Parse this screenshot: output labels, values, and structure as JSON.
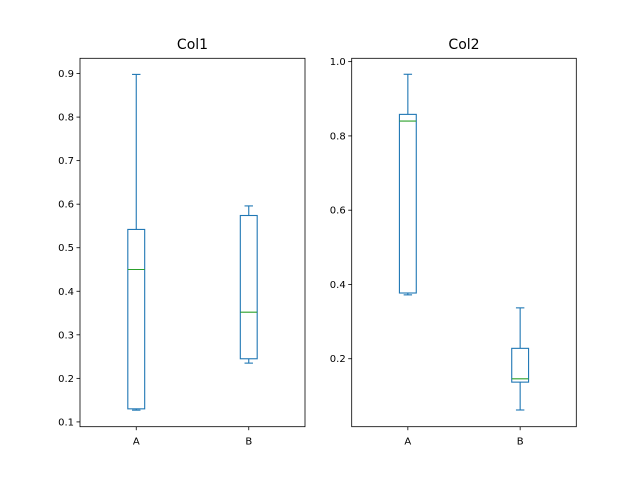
{
  "chart_data": [
    {
      "type": "boxplot",
      "title": "Col1",
      "categories": [
        "A",
        "B"
      ],
      "ylim": [
        0.089,
        0.935
      ],
      "yticks": [
        0.1,
        0.2,
        0.3,
        0.4,
        0.5,
        0.6,
        0.7,
        0.8,
        0.9
      ],
      "ytick_labels": [
        "0.1",
        "0.2",
        "0.3",
        "0.4",
        "0.5",
        "0.6",
        "0.7",
        "0.8",
        "0.9"
      ],
      "boxes": [
        {
          "category": "A",
          "whisker_low": 0.127,
          "q1": 0.13,
          "median": 0.45,
          "q3": 0.542,
          "whisker_high": 0.898
        },
        {
          "category": "B",
          "whisker_low": 0.235,
          "q1": 0.245,
          "median": 0.352,
          "q3": 0.574,
          "whisker_high": 0.596
        }
      ],
      "grid": false
    },
    {
      "type": "boxplot",
      "title": "Col2",
      "categories": [
        "A",
        "B"
      ],
      "ylim": [
        0.017,
        1.009
      ],
      "yticks": [
        0.2,
        0.4,
        0.6,
        0.8,
        1.0
      ],
      "ytick_labels": [
        "0.2",
        "0.4",
        "0.6",
        "0.8",
        "1.0"
      ],
      "boxes": [
        {
          "category": "A",
          "whisker_low": 0.372,
          "q1": 0.377,
          "median": 0.84,
          "q3": 0.858,
          "whisker_high": 0.966
        },
        {
          "category": "B",
          "whisker_low": 0.062,
          "q1": 0.137,
          "median": 0.146,
          "q3": 0.228,
          "whisker_high": 0.337
        }
      ],
      "grid": false
    }
  ],
  "colors": {
    "box": "#1f77b4",
    "median": "#2ca02c",
    "axes": "#000000"
  }
}
